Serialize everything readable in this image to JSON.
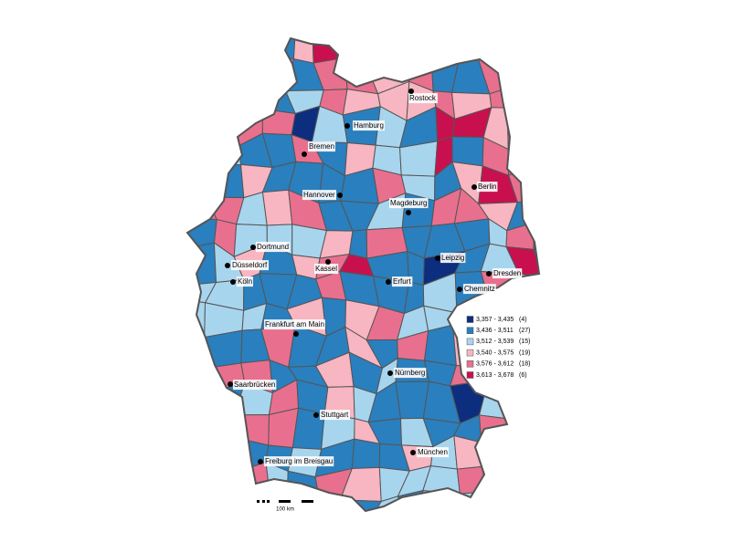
{
  "map": {
    "cities": [
      "Rostock",
      "Hamburg",
      "Bremen",
      "Hannover",
      "Berlin",
      "Magdeburg",
      "Dortmund",
      "Düsseldorf",
      "Köln",
      "Kassel",
      "Erfurt",
      "Leipzig",
      "Dresden",
      "Chemnitz",
      "Frankfurt am Main",
      "Nürnberg",
      "Saarbrücken",
      "Stuttgart",
      "München",
      "Freiburg im Breisgau"
    ],
    "legend": [
      {
        "range": "3,357 - 3,435",
        "count": "(4)",
        "color": "#0d2e7e"
      },
      {
        "range": "3,436 - 3,511",
        "count": "(27)",
        "color": "#2a7fbe"
      },
      {
        "range": "3,512 - 3,539",
        "count": "(15)",
        "color": "#a8d5ee"
      },
      {
        "range": "3,540 - 3,575",
        "count": "(19)",
        "color": "#f7b6c2"
      },
      {
        "range": "3,576 - 3,612",
        "count": "(18)",
        "color": "#e8708e"
      },
      {
        "range": "3,613 - 3,678",
        "count": "(6)",
        "color": "#c8104f"
      }
    ],
    "scale_label": "100 km"
  }
}
